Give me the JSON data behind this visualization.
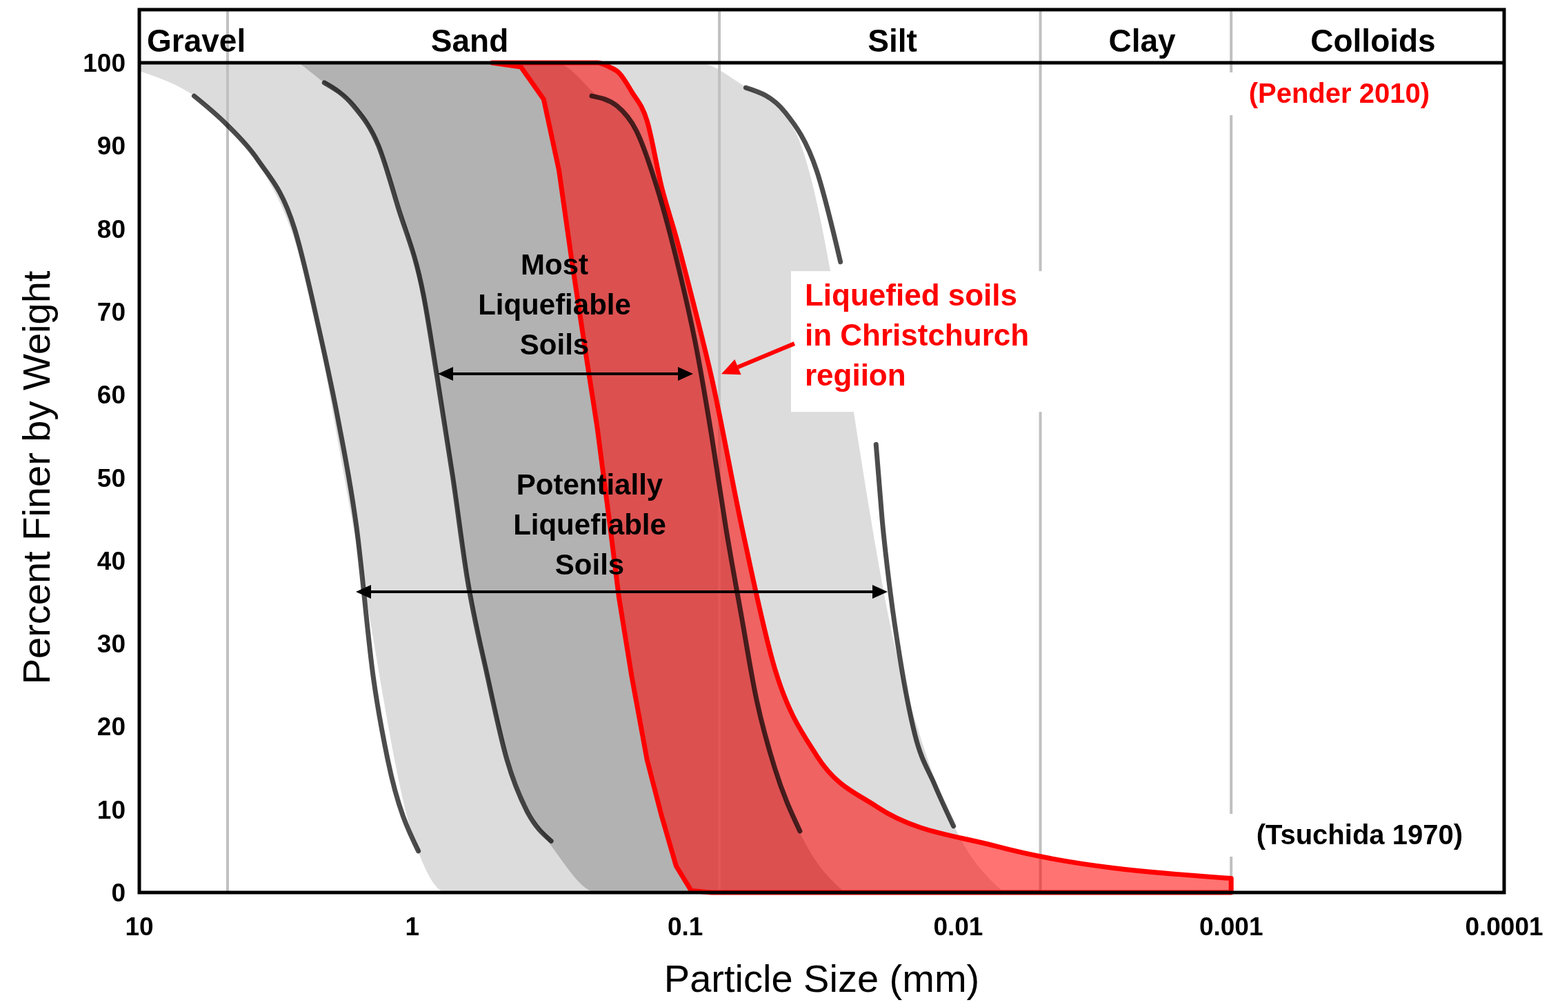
{
  "chart_data": {
    "type": "area",
    "xlabel": "Particle Size (mm)",
    "ylabel": "Percent Finer by Weight",
    "log": "x",
    "xlim": [
      10,
      0.0001
    ],
    "xticks": [
      10,
      1,
      0.1,
      0.01,
      0.001,
      0.0001
    ],
    "ylim": [
      0,
      100
    ],
    "yticks": [
      0,
      10,
      20,
      30,
      40,
      50,
      60,
      70,
      80,
      90,
      100
    ],
    "grid": false,
    "ref_lines": [
      {
        "axis": "x",
        "value": 4.75,
        "color": "#c0c0c0"
      },
      {
        "axis": "x",
        "value": 0.075,
        "color": "#c0c0c0"
      },
      {
        "axis": "x",
        "value": 0.005,
        "color": "#c0c0c0"
      },
      {
        "axis": "x",
        "value": 0.001,
        "color": "#c0c0c0"
      }
    ],
    "series": [
      {
        "color": "#dcdcdc",
        "x": [
          10,
          6,
          4,
          2.5,
          1.6,
          1,
          0.75,
          0.4,
          0.16,
          0.09,
          0.063,
          0.04,
          0.025,
          0.016,
          0.01,
          0.0068
        ],
        "values": [
          null,
          null,
          null,
          null,
          null,
          null,
          null,
          null,
          null,
          null,
          null,
          null,
          null,
          null,
          null,
          null
        ],
        "upper": [
          100,
          100,
          100,
          100,
          100,
          100,
          100,
          100,
          100,
          100,
          97.5,
          92,
          null,
          26,
          7,
          0
        ],
        "lower": [
          99,
          95.5,
          89.7,
          75,
          42,
          7,
          0,
          0,
          0,
          0,
          0,
          0,
          null,
          0,
          0,
          0
        ]
      },
      {
        "color": "#b2b2b2",
        "x": [
          2.6,
          2,
          1.6,
          1.3,
          1,
          0.8,
          0.63,
          0.5,
          0.4,
          0.3,
          0.21,
          0.15,
          0.12,
          0.09,
          0.07,
          0.055,
          0.045,
          0.035,
          0.026
        ],
        "values": [
          null,
          null,
          null,
          null,
          null,
          null,
          null,
          null,
          null,
          null,
          null,
          null,
          null,
          null,
          null,
          null,
          null,
          null,
          null
        ],
        "upper": [
          100,
          100,
          100,
          100,
          100,
          100,
          100,
          100,
          100,
          100,
          96,
          91.5,
          82.5,
          65,
          42,
          23.5,
          13,
          5,
          0
        ],
        "lower": [
          100,
          97,
          94.5,
          89,
          77,
          61,
          38,
          22,
          12,
          5,
          0,
          0,
          0,
          0,
          0,
          0,
          0,
          0,
          0
        ]
      },
      {
        "type": "line",
        "color": "#000000",
        "x": [
          6.3,
          4.8,
          3.7,
          2.7,
          2.2,
          1.87,
          1.6,
          1.39,
          1.23,
          0.95
        ],
        "values": [
          96,
          92.6,
          88.4,
          80,
          68,
          57,
          44,
          26,
          16,
          5
        ]
      },
      {
        "type": "line",
        "color": "#000000",
        "x": [
          0.06,
          0.043,
          0.033,
          0.027,
          0.023,
          0.02,
          0.019,
          0.0177,
          0.0163,
          0.0144,
          0.0122,
          0.0104
        ],
        "values": [
          97,
          94,
          87,
          76,
          null,
          54,
          45,
          36,
          28,
          19,
          13,
          8
        ]
      },
      {
        "type": "line",
        "color": "#000000",
        "x": [
          2.1,
          1.64,
          1.33,
          1.13,
          0.91,
          0.81,
          0.71,
          0.63,
          0.53,
          0.45,
          0.38,
          0.31
        ],
        "values": [
          97.6,
          94.8,
          90,
          82.7,
          72,
          62,
          50,
          38,
          26,
          16,
          9.8,
          6.2
        ]
      },
      {
        "type": "line",
        "color": "#000000",
        "x": [
          0.22,
          0.178,
          0.151,
          0.127,
          0.108,
          0.091,
          0.08,
          0.071,
          0.062,
          0.055,
          0.047,
          0.038
        ],
        "values": [
          96,
          94.8,
          91.8,
          85,
          76.5,
          65.6,
          55,
          44,
          33,
          23.5,
          15,
          7.4
        ]
      },
      {
        "name": "Liquefied soils in Christchurch regiion",
        "color": "#ff0000",
        "line_style": "solid",
        "x": [
          0.51,
          0.4,
          0.33,
          0.29,
          0.26,
          0.229,
          0.21,
          0.19,
          0.175,
          0.157,
          0.138,
          0.122,
          0.108,
          0.095,
          0.08,
          0.062,
          0.047,
          0.033,
          0.02,
          0.0073,
          0.001
        ],
        "values": [
          null,
          null,
          null,
          null,
          null,
          null,
          null,
          null,
          null,
          null,
          null,
          null,
          null,
          null,
          null,
          null,
          null,
          null,
          null,
          null,
          null
        ],
        "upper": [
          100,
          100,
          100,
          100,
          100,
          100,
          100,
          99.5,
          98.8,
          96.5,
          93,
          85,
          79,
          72,
          62,
          44,
          27,
          16.5,
          10.4,
          5.6,
          1.7
        ],
        "lower": [
          100,
          99.5,
          95.6,
          87,
          76,
          64,
          56,
          45,
          35.6,
          26,
          16,
          9.2,
          3.2,
          0.2,
          0,
          0,
          0,
          0,
          0,
          0,
          0
        ]
      }
    ],
    "annotations": [
      "Gravel",
      "Sand",
      "Silt",
      "Clay",
      "Colloids",
      "Most\nLiquefiable\nSoils",
      "Potentially\nLiquefiable\nSoils",
      "(Pender 2010)",
      "(Tsuchida 1970)"
    ]
  }
}
